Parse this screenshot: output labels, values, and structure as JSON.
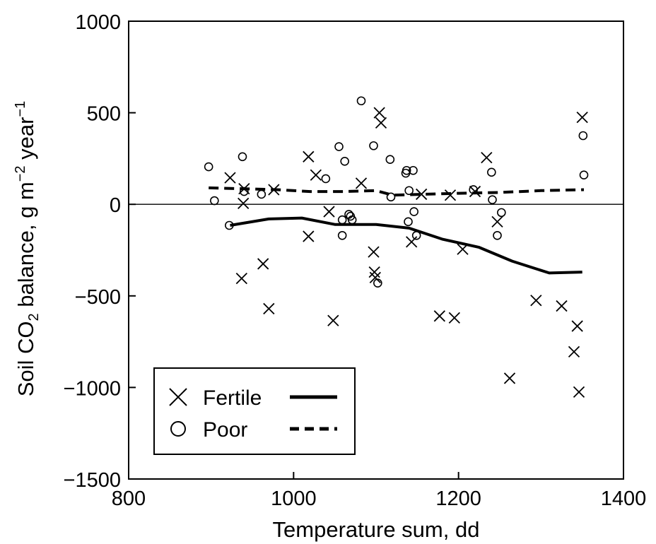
{
  "chart_data": {
    "type": "scatter",
    "title": "",
    "xlabel": "Temperature sum, dd",
    "ylabel": {
      "prefix": "Soil CO",
      "sub": "2",
      "mid": " balance, g m",
      "sup1": "−2",
      "mid2": " year",
      "sup2": "−1"
    },
    "xlim": [
      800,
      1400
    ],
    "ylim": [
      -1500,
      1000
    ],
    "xticks": [
      800,
      1000,
      1200,
      1400
    ],
    "xtick_labels": [
      "800",
      "1000",
      "1200",
      "1400"
    ],
    "yticks": [
      1000,
      500,
      0,
      -500,
      -1000,
      -1500
    ],
    "ytick_labels": [
      "1000",
      "500",
      "0",
      "−500",
      "−1000",
      "−1500"
    ],
    "zero_line": true,
    "grid": false,
    "legend_position": "bottom-left",
    "series": [
      {
        "name": "Fertile",
        "marker": "x",
        "line_style": "solid",
        "points": [
          [
            923,
            145
          ],
          [
            939,
            5
          ],
          [
            940,
            85
          ],
          [
            937,
            -405
          ],
          [
            963,
            -325
          ],
          [
            970,
            -570
          ],
          [
            976,
            80
          ],
          [
            1018,
            260
          ],
          [
            1018,
            -175
          ],
          [
            1027,
            160
          ],
          [
            1043,
            -40
          ],
          [
            1048,
            -635
          ],
          [
            1082,
            115
          ],
          [
            1097,
            -260
          ],
          [
            1098,
            -370
          ],
          [
            1099,
            -400
          ],
          [
            1104,
            500
          ],
          [
            1106,
            445
          ],
          [
            1143,
            -205
          ],
          [
            1155,
            55
          ],
          [
            1177,
            -610
          ],
          [
            1195,
            -620
          ],
          [
            1190,
            50
          ],
          [
            1205,
            -245
          ],
          [
            1220,
            70
          ],
          [
            1234,
            255
          ],
          [
            1247,
            -95
          ],
          [
            1262,
            -950
          ],
          [
            1294,
            -525
          ],
          [
            1325,
            -555
          ],
          [
            1340,
            -805
          ],
          [
            1344,
            -665
          ],
          [
            1346,
            -1025
          ],
          [
            1350,
            475
          ]
        ],
        "trend": [
          [
            923,
            -115
          ],
          [
            970,
            -80
          ],
          [
            1010,
            -75
          ],
          [
            1050,
            -110
          ],
          [
            1100,
            -110
          ],
          [
            1140,
            -130
          ],
          [
            1180,
            -190
          ],
          [
            1225,
            -235
          ],
          [
            1265,
            -310
          ],
          [
            1310,
            -375
          ],
          [
            1350,
            -370
          ]
        ]
      },
      {
        "name": "Poor",
        "marker": "o",
        "line_style": "dashed",
        "points": [
          [
            897,
            205
          ],
          [
            904,
            20
          ],
          [
            922,
            -115
          ],
          [
            938,
            260
          ],
          [
            940,
            70
          ],
          [
            961,
            55
          ],
          [
            1039,
            140
          ],
          [
            1055,
            315
          ],
          [
            1059,
            -85
          ],
          [
            1059,
            -170
          ],
          [
            1062,
            235
          ],
          [
            1067,
            -55
          ],
          [
            1069,
            -65
          ],
          [
            1071,
            -85
          ],
          [
            1082,
            565
          ],
          [
            1097,
            320
          ],
          [
            1102,
            -430
          ],
          [
            1117,
            245
          ],
          [
            1118,
            40
          ],
          [
            1136,
            170
          ],
          [
            1137,
            185
          ],
          [
            1139,
            -95
          ],
          [
            1140,
            75
          ],
          [
            1145,
            185
          ],
          [
            1146,
            -40
          ],
          [
            1149,
            -170
          ],
          [
            1218,
            80
          ],
          [
            1240,
            175
          ],
          [
            1241,
            25
          ],
          [
            1247,
            -170
          ],
          [
            1252,
            -45
          ],
          [
            1351,
            375
          ],
          [
            1352,
            160
          ]
        ],
        "trend": [
          [
            897,
            90
          ],
          [
            940,
            85
          ],
          [
            980,
            80
          ],
          [
            1020,
            70
          ],
          [
            1060,
            70
          ],
          [
            1100,
            75
          ],
          [
            1120,
            50
          ],
          [
            1160,
            55
          ],
          [
            1200,
            60
          ],
          [
            1250,
            65
          ],
          [
            1300,
            75
          ],
          [
            1352,
            80
          ]
        ]
      }
    ]
  }
}
